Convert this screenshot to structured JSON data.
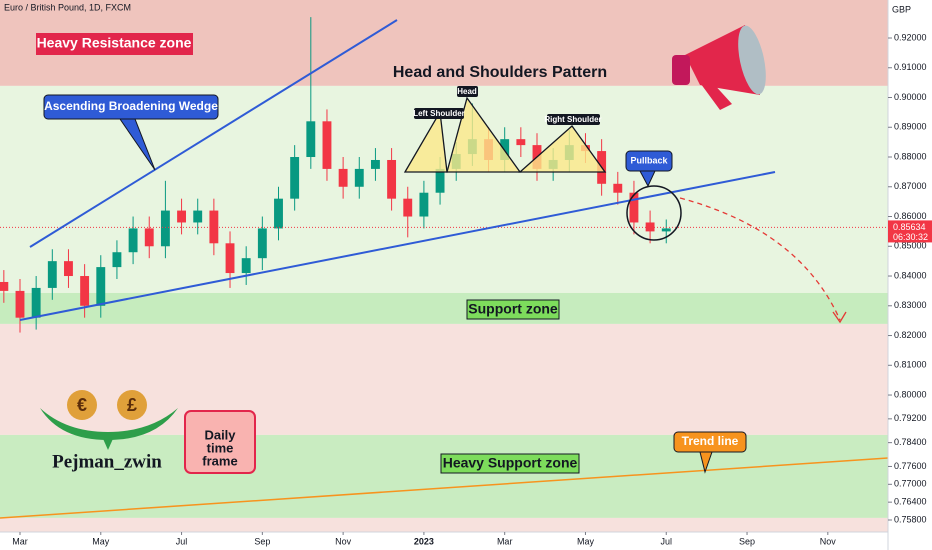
{
  "chart_data": {
    "type": "candlestick",
    "title": "Euro / British Pound, 1D, FXCM",
    "currency": "GBP",
    "pattern_title": "Head and Shoulders Pattern",
    "annotations": {
      "wedge": "Ascending Broadening Wedge",
      "head": "Head",
      "left_shoulder": "Left Shoulder",
      "right_shoulder": "Right Shoulder",
      "pullback": "Pullback",
      "trend_line": "Trend line"
    },
    "branding": {
      "author": "Pejman_zwin",
      "timeframe": [
        "Daily",
        "time",
        "frame"
      ]
    },
    "zones": [
      {
        "name": "Heavy Resistance zone",
        "from": 0.9039,
        "to": 0.9328,
        "color": "#efc4bd"
      },
      {
        "from": 0.8343,
        "to": 0.9039,
        "color": "#e8f5e0"
      },
      {
        "name": "Support zone",
        "from": 0.8239,
        "to": 0.8343,
        "color": "#c6ecbe"
      },
      {
        "from": 0.7866,
        "to": 0.8239,
        "color": "#f7e1dd"
      },
      {
        "name": "Heavy Support zone",
        "from": 0.7587,
        "to": 0.7866,
        "color": "#c9ecc1"
      },
      {
        "from": 0.754,
        "to": 0.7587,
        "color": "#f7e1dd"
      }
    ],
    "up_color": "#089981",
    "down_color": "#f23645",
    "x": [
      1.6,
      2.0,
      2.4,
      2.8,
      3.2,
      3.6,
      4.0,
      4.4,
      4.8,
      5.2,
      5.6,
      6.0,
      6.4,
      6.8,
      7.2,
      7.6,
      8.0,
      8.4,
      8.8,
      9.2,
      9.6,
      10.0,
      10.4,
      10.8,
      11.2,
      11.6,
      12.0,
      12.4,
      12.8,
      13.2,
      13.6,
      14.0,
      14.4,
      14.8,
      15.2,
      15.6,
      16.0,
      16.4,
      16.8,
      17.2,
      17.6,
      18.0
    ],
    "open": [
      0.838,
      0.835,
      0.826,
      0.836,
      0.845,
      0.84,
      0.83,
      0.843,
      0.848,
      0.856,
      0.85,
      0.862,
      0.858,
      0.862,
      0.851,
      0.841,
      0.846,
      0.856,
      0.866,
      0.88,
      0.892,
      0.876,
      0.87,
      0.876,
      0.879,
      0.866,
      0.86,
      0.868,
      0.876,
      0.881,
      0.886,
      0.879,
      0.886,
      0.884,
      0.876,
      0.879,
      0.884,
      0.882,
      0.871,
      0.868,
      0.858,
      0.855
    ],
    "high": [
      0.842,
      0.839,
      0.84,
      0.849,
      0.849,
      0.844,
      0.847,
      0.852,
      0.86,
      0.86,
      0.872,
      0.866,
      0.866,
      0.866,
      0.855,
      0.85,
      0.86,
      0.87,
      0.884,
      0.927,
      0.896,
      0.88,
      0.88,
      0.883,
      0.883,
      0.87,
      0.872,
      0.88,
      0.885,
      0.898,
      0.89,
      0.89,
      0.89,
      0.888,
      0.883,
      0.889,
      0.888,
      0.886,
      0.875,
      0.872,
      0.862,
      0.859
    ],
    "low": [
      0.831,
      0.821,
      0.822,
      0.832,
      0.836,
      0.826,
      0.826,
      0.839,
      0.844,
      0.846,
      0.846,
      0.854,
      0.854,
      0.847,
      0.836,
      0.837,
      0.842,
      0.852,
      0.862,
      0.876,
      0.872,
      0.866,
      0.866,
      0.872,
      0.862,
      0.853,
      0.856,
      0.864,
      0.872,
      0.877,
      0.875,
      0.875,
      0.88,
      0.872,
      0.872,
      0.875,
      0.878,
      0.867,
      0.864,
      0.854,
      0.851,
      0.851
    ],
    "close": [
      0.835,
      0.826,
      0.836,
      0.845,
      0.84,
      0.83,
      0.843,
      0.848,
      0.856,
      0.85,
      0.862,
      0.858,
      0.862,
      0.851,
      0.841,
      0.846,
      0.856,
      0.866,
      0.88,
      0.892,
      0.876,
      0.87,
      0.876,
      0.879,
      0.866,
      0.86,
      0.868,
      0.876,
      0.881,
      0.886,
      0.879,
      0.886,
      0.884,
      0.876,
      0.879,
      0.884,
      0.882,
      0.871,
      0.868,
      0.858,
      0.855,
      0.856
    ],
    "last_price": {
      "value": 0.85634,
      "label": "0.85634"
    },
    "countdown": "06:30:32",
    "xlim": [
      1.505,
      23.49
    ],
    "xticks": [
      {
        "value": 2,
        "label": "Mar"
      },
      {
        "value": 4,
        "label": "May"
      },
      {
        "value": 6,
        "label": "Jul"
      },
      {
        "value": 8,
        "label": "Sep"
      },
      {
        "value": 10,
        "label": "Nov"
      },
      {
        "value": 12,
        "label": "2023"
      },
      {
        "value": 14,
        "label": "Mar"
      },
      {
        "value": 16,
        "label": "May"
      },
      {
        "value": 18,
        "label": "Jul"
      },
      {
        "value": 20,
        "label": "Sep"
      },
      {
        "value": 22,
        "label": "Nov"
      }
    ],
    "ylim": [
      0.75397,
      0.93277
    ],
    "yticks": [
      {
        "value": 0.92,
        "label": "0.92000"
      },
      {
        "value": 0.91,
        "label": "0.91000"
      },
      {
        "value": 0.9,
        "label": "0.90000"
      },
      {
        "value": 0.89,
        "label": "0.89000"
      },
      {
        "value": 0.88,
        "label": "0.88000"
      },
      {
        "value": 0.87,
        "label": "0.87000"
      },
      {
        "value": 0.86,
        "label": "0.86000"
      },
      {
        "value": 0.85,
        "label": "0.85000"
      },
      {
        "value": 0.84,
        "label": "0.84000"
      },
      {
        "value": 0.83,
        "label": "0.83000"
      },
      {
        "value": 0.82,
        "label": "0.82000"
      },
      {
        "value": 0.81,
        "label": "0.81000"
      },
      {
        "value": 0.8,
        "label": "0.80000"
      },
      {
        "value": 0.792,
        "label": "0.79200"
      },
      {
        "value": 0.784,
        "label": "0.78400"
      },
      {
        "value": 0.776,
        "label": "0.77600"
      },
      {
        "value": 0.77,
        "label": "0.77000"
      },
      {
        "value": 0.764,
        "label": "0.76400"
      },
      {
        "value": 0.758,
        "label": "0.75800"
      }
    ]
  }
}
